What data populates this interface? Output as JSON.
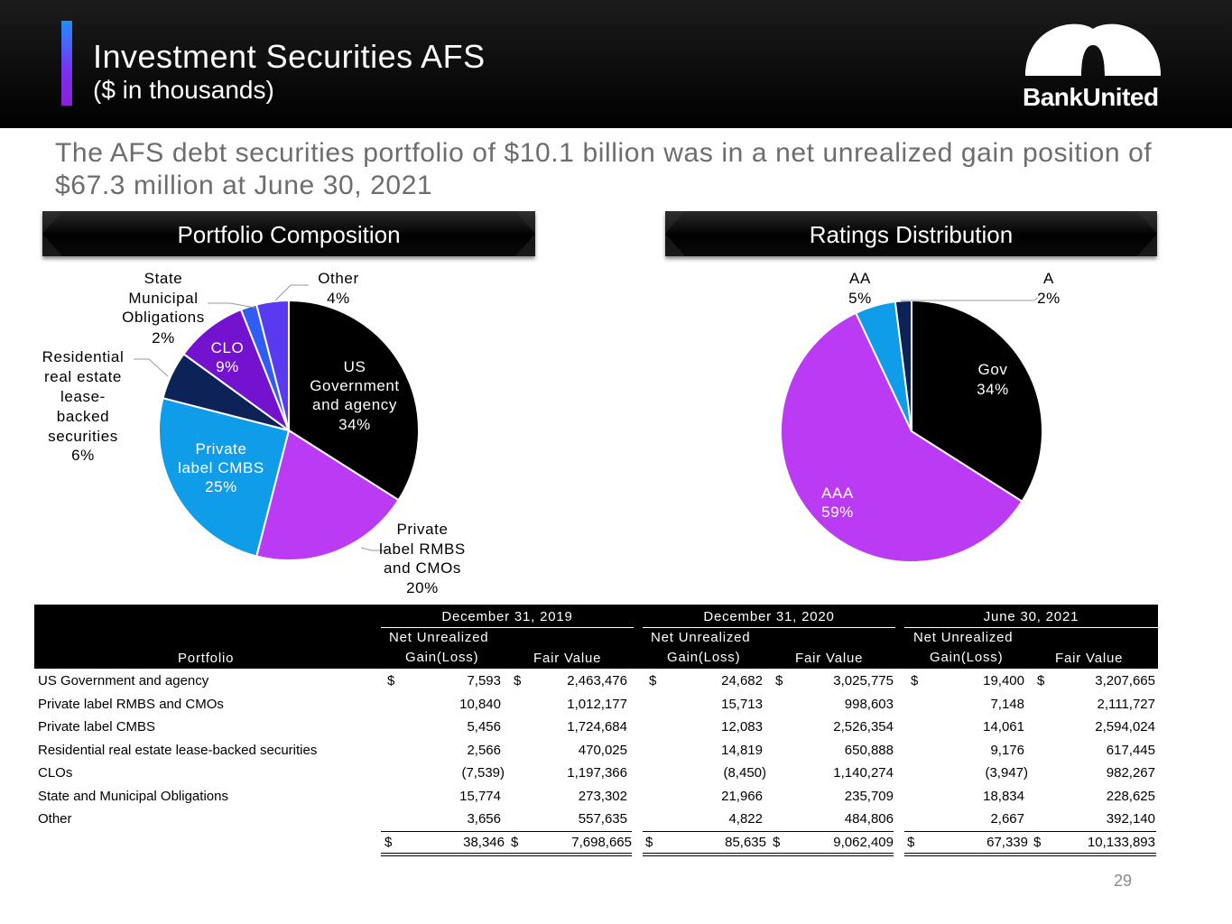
{
  "header": {
    "title": "Investment Securities AFS",
    "subtitle": "($ in thousands)",
    "logo_text": "BankUnited"
  },
  "headline": "The AFS debt securities portfolio of $10.1 billion was in a net unrealized gain position of $67.3 million at June 30, 2021",
  "banners": {
    "left": "Portfolio Composition",
    "right": "Ratings Distribution"
  },
  "chart_data": [
    {
      "type": "pie",
      "title": "Portfolio Composition",
      "slices": [
        {
          "label": "US Government and agency",
          "value": 34,
          "color": "#000000"
        },
        {
          "label": "Private label RMBS and CMOs",
          "value": 20,
          "color": "#bb3af4"
        },
        {
          "label": "Private label CMBS",
          "value": 25,
          "color": "#0f9ce8"
        },
        {
          "label": "Residential real estate lease-backed securities",
          "value": 6,
          "color": "#0d2257"
        },
        {
          "label": "CLO",
          "value": 9,
          "color": "#7413cf"
        },
        {
          "label": "State Municipal Obligations",
          "value": 2,
          "color": "#2f5cf2"
        },
        {
          "label": "Other",
          "value": 4,
          "color": "#5a3af0"
        }
      ],
      "labels": {
        "us_gov": [
          "US",
          "Government",
          "and agency",
          "34%"
        ],
        "rmbs": [
          "Private",
          "label RMBS",
          "and CMOs",
          "20%"
        ],
        "cmbs": [
          "Private",
          "label CMBS",
          "25%"
        ],
        "resi": [
          "Residential",
          "real estate",
          "lease-",
          "backed",
          "securities",
          "6%"
        ],
        "clo": [
          "CLO",
          "9%"
        ],
        "state": [
          "State",
          "Municipal",
          "Obligations",
          "2%"
        ],
        "other": [
          "Other",
          "4%"
        ]
      }
    },
    {
      "type": "pie",
      "title": "Ratings Distribution",
      "slices": [
        {
          "label": "Gov",
          "value": 34,
          "color": "#000000"
        },
        {
          "label": "AAA",
          "value": 59,
          "color": "#bb3af4"
        },
        {
          "label": "AA",
          "value": 5,
          "color": "#0f9ce8"
        },
        {
          "label": "A",
          "value": 2,
          "color": "#0d2257"
        }
      ],
      "labels": {
        "gov": [
          "Gov",
          "34%"
        ],
        "aaa": [
          "AAA",
          "59%"
        ],
        "aa": [
          "AA",
          "5%"
        ],
        "a": [
          "A",
          "2%"
        ]
      }
    }
  ],
  "table": {
    "portfolio_header": "Portfolio",
    "groups": [
      "December 31, 2019",
      "December 31, 2020",
      "June 30, 2021"
    ],
    "col_gain_line1": "Net Unrealized",
    "col_gain_line2": "Gain(Loss)",
    "col_fv": "Fair Value",
    "dollar": "$",
    "rows": [
      {
        "name": "US Government and agency",
        "v": [
          "7,593",
          "2,463,476",
          "24,682",
          "3,025,775",
          "19,400",
          "3,207,665"
        ]
      },
      {
        "name": "Private label RMBS and CMOs",
        "v": [
          "10,840",
          "1,012,177",
          "15,713",
          "998,603",
          "7,148",
          "2,111,727"
        ]
      },
      {
        "name": "Private label CMBS",
        "v": [
          "5,456",
          "1,724,684",
          "12,083",
          "2,526,354",
          "14,061",
          "2,594,024"
        ]
      },
      {
        "name": "Residential real estate lease-backed securities",
        "v": [
          "2,566",
          "470,025",
          "14,819",
          "650,888",
          "9,176",
          "617,445"
        ]
      },
      {
        "name": "CLOs",
        "v": [
          "(7,539)",
          "1,197,366",
          "(8,450)",
          "1,140,274",
          "(3,947)",
          "982,267"
        ]
      },
      {
        "name": "State and Municipal Obligations",
        "v": [
          "15,774",
          "273,302",
          "21,966",
          "235,709",
          "18,834",
          "228,625"
        ]
      },
      {
        "name": "Other",
        "v": [
          "3,656",
          "557,635",
          "4,822",
          "484,806",
          "2,667",
          "392,140"
        ]
      }
    ],
    "totals": [
      "38,346",
      "7,698,665",
      "85,635",
      "9,062,409",
      "67,339",
      "10,133,893"
    ]
  },
  "page_number": "29"
}
